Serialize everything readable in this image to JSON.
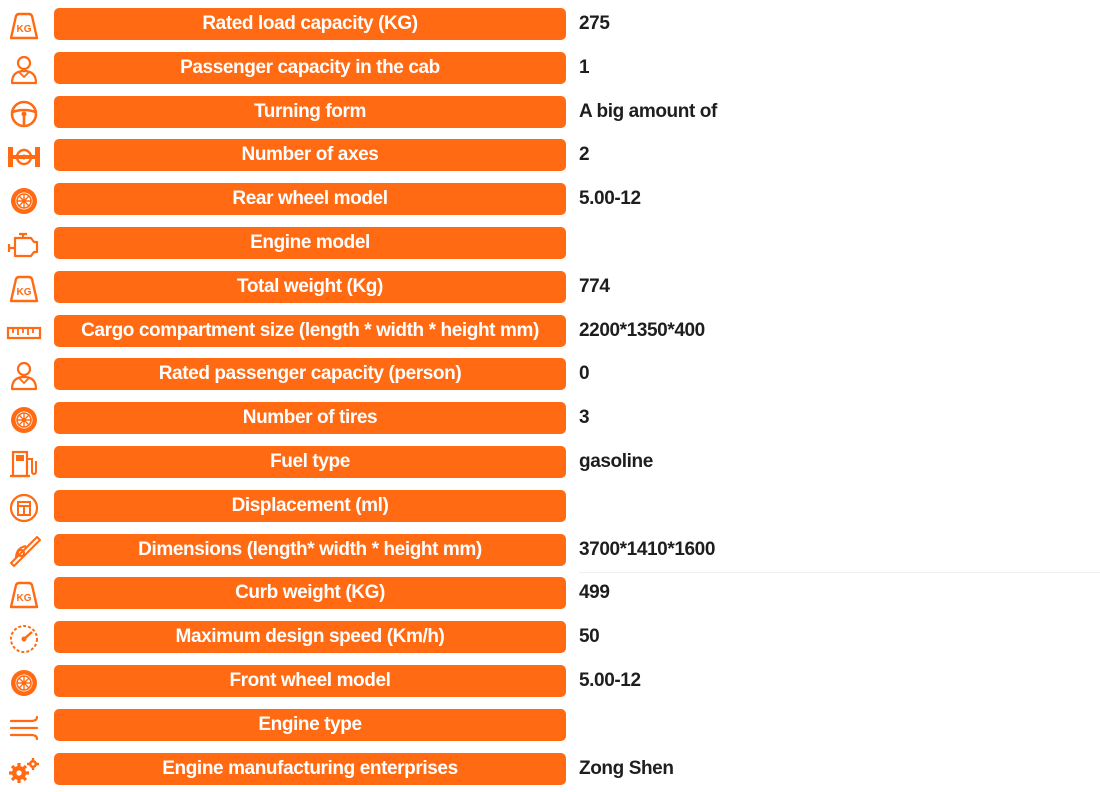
{
  "accent_color": "#ff6a13",
  "value_color": "#1e1e1e",
  "specs": [
    {
      "icon": "kg-weight-icon",
      "label": "Rated load capacity (KG)",
      "value": "275"
    },
    {
      "icon": "passenger-icon",
      "label": "Passenger capacity in the cab",
      "value": "1"
    },
    {
      "icon": "steering-wheel-icon",
      "label": "Turning form",
      "value": "A big amount of"
    },
    {
      "icon": "axle-icon",
      "label": "Number of axes",
      "value": "2"
    },
    {
      "icon": "wheel-icon",
      "label": "Rear wheel model",
      "value": "5.00-12"
    },
    {
      "icon": "engine-icon",
      "label": "Engine model",
      "value": ""
    },
    {
      "icon": "kg-weight-icon",
      "label": "Total weight (Kg)",
      "value": "774"
    },
    {
      "icon": "ruler-icon",
      "label": "Cargo compartment size (length * width * height mm)",
      "value": "2200*1350*400"
    },
    {
      "icon": "passenger-icon",
      "label": "Rated passenger capacity (person)",
      "value": "0"
    },
    {
      "icon": "wheel-icon",
      "label": "Number of tires",
      "value": "3"
    },
    {
      "icon": "fuel-pump-icon",
      "label": "Fuel type",
      "value": "gasoline"
    },
    {
      "icon": "displacement-icon",
      "label": "Displacement (ml)",
      "value": ""
    },
    {
      "icon": "dimensions-icon",
      "label": "Dimensions (length* width * height mm)",
      "value": "3700*1410*1600"
    },
    {
      "icon": "kg-weight-icon",
      "label": "Curb weight (KG)",
      "value": "499"
    },
    {
      "icon": "speedometer-icon",
      "label": "Maximum design speed (Km/h)",
      "value": "50"
    },
    {
      "icon": "wheel-icon",
      "label": "Front wheel model",
      "value": "5.00-12"
    },
    {
      "icon": "engine-type-icon",
      "label": "Engine type",
      "value": ""
    },
    {
      "icon": "gears-icon",
      "label": "Engine manufacturing enterprises",
      "value": "Zong Shen"
    }
  ]
}
